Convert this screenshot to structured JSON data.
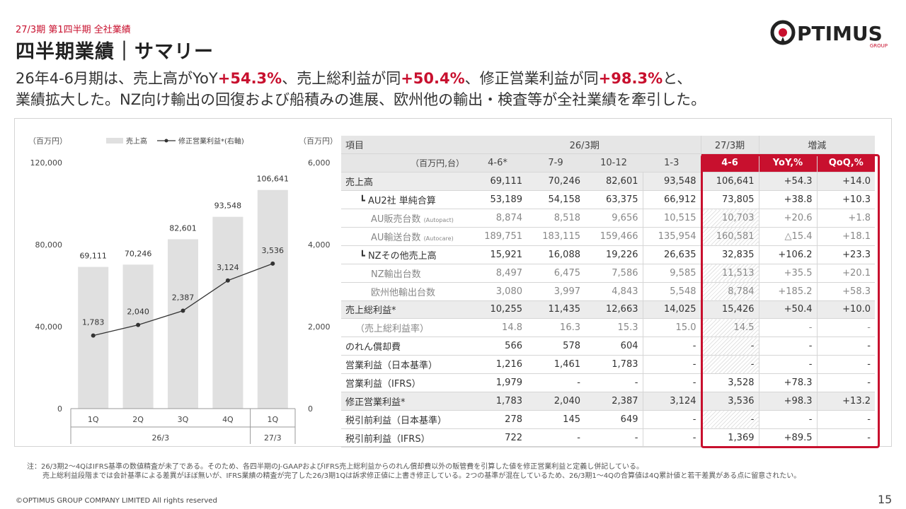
{
  "header": {
    "pretitle": "27/3期 第1四半期 全社業績",
    "title": "四半期業績｜サマリー",
    "lead": {
      "l1a": "26年4-6月期は、売上高がYoY",
      "l1b": "+54.3%",
      "l1c": "、売上総利益が同",
      "l1d": "+50.4%",
      "l1e": "、修正営業利益が同",
      "l1f": "+98.3%",
      "l1g": "と、",
      "l2": "業績拡大した。NZ向け輸出の回復および船積みの進展、欧州他の輸出・検査等が全社業績を牽引した。"
    }
  },
  "logo": {
    "word": "PTIMUS",
    "sub": "GROUP",
    "brand_color": "#c8102e"
  },
  "chart_data": {
    "type": "bar",
    "left_unit": "（百万円）",
    "right_unit": "（百万円）",
    "legend": {
      "bar": "売上高",
      "line": "修正営業利益*(右軸)"
    },
    "categories": [
      "1Q",
      "2Q",
      "3Q",
      "4Q",
      "1Q"
    ],
    "groups": [
      {
        "label": "26/3",
        "span": 4
      },
      {
        "label": "27/3",
        "span": 1
      }
    ],
    "left_ticks": [
      "120,000",
      "80,000",
      "40,000",
      "0"
    ],
    "right_ticks": [
      "6,000",
      "4,000",
      "2,000",
      "0"
    ],
    "ylim_left": [
      0,
      120000
    ],
    "ylim_right": [
      0,
      6000
    ],
    "series": [
      {
        "name": "売上高",
        "type": "bar",
        "axis": "left",
        "values": [
          69111,
          70246,
          82601,
          93548,
          106641
        ],
        "labels": [
          "69,111",
          "70,246",
          "82,601",
          "93,548",
          "106,641"
        ],
        "color": "#e0e0e0"
      },
      {
        "name": "修正営業利益*",
        "type": "line",
        "axis": "right",
        "values": [
          1783,
          2040,
          2387,
          3124,
          3536
        ],
        "labels": [
          "1,783",
          "2,040",
          "2,387",
          "3,124",
          "3,536"
        ],
        "color": "#333333"
      }
    ]
  },
  "table": {
    "head1": {
      "item": "項目",
      "p26": "26/3期",
      "p27": "27/3期",
      "diff": "増減"
    },
    "head2": {
      "unit": "（百万円,台）",
      "c1": "4-6*",
      "c2": "7-9",
      "c3": "10-12",
      "c4": "1-3",
      "c5": "4-6",
      "c6": "YoY,%",
      "c7": "QoQ,%"
    },
    "rows": [
      {
        "label": "売上高",
        "small": "",
        "v": [
          "69,111",
          "70,246",
          "82,601",
          "93,548",
          "106,641",
          "+54.3",
          "+14.0"
        ]
      },
      {
        "label": "┗ AU2社 単純合算",
        "small": "",
        "v": [
          "53,189",
          "54,158",
          "63,375",
          "66,912",
          "73,805",
          "+38.8",
          "+10.3"
        ]
      },
      {
        "label": "AU販売台数",
        "small": "(Autopact)",
        "v": [
          "8,874",
          "8,518",
          "9,656",
          "10,515",
          "10,703",
          "+20.6",
          "+1.8"
        ]
      },
      {
        "label": "AU輸送台数",
        "small": "(Autocare)",
        "v": [
          "189,751",
          "183,115",
          "159,466",
          "135,954",
          "160,581",
          "△15.4",
          "+18.1"
        ]
      },
      {
        "label": "┗ NZその他売上高",
        "small": "",
        "v": [
          "15,921",
          "16,088",
          "19,226",
          "26,635",
          "32,835",
          "+106.2",
          "+23.3"
        ]
      },
      {
        "label": "NZ輸出台数",
        "small": "",
        "v": [
          "8,497",
          "6,475",
          "7,586",
          "9,585",
          "11,513",
          "+35.5",
          "+20.1"
        ]
      },
      {
        "label": "欧州他輸出台数",
        "small": "",
        "v": [
          "3,080",
          "3,997",
          "4,843",
          "5,548",
          "8,784",
          "+185.2",
          "+58.3"
        ]
      },
      {
        "label": "売上総利益*",
        "small": "",
        "v": [
          "10,255",
          "11,435",
          "12,663",
          "14,025",
          "15,426",
          "+50.4",
          "+10.0"
        ]
      },
      {
        "label": "（売上総利益率）",
        "small": "",
        "v": [
          "14.8",
          "16.3",
          "15.3",
          "15.0",
          "14.5",
          "-",
          "-"
        ]
      },
      {
        "label": "のれん償却費",
        "small": "",
        "v": [
          "566",
          "578",
          "604",
          "-",
          "-",
          "-",
          "-"
        ]
      },
      {
        "label": "営業利益（日本基準）",
        "small": "",
        "v": [
          "1,216",
          "1,461",
          "1,783",
          "-",
          "-",
          "-",
          "-"
        ]
      },
      {
        "label": "営業利益（IFRS）",
        "small": "",
        "v": [
          "1,979",
          "-",
          "-",
          "-",
          "3,528",
          "+78.3",
          "-"
        ]
      },
      {
        "label": "修正営業利益*",
        "small": "",
        "v": [
          "1,783",
          "2,040",
          "2,387",
          "3,124",
          "3,536",
          "+98.3",
          "+13.2"
        ]
      },
      {
        "label": "税引前利益（日本基準）",
        "small": "",
        "v": [
          "278",
          "145",
          "649",
          "-",
          "-",
          "-",
          "-"
        ]
      },
      {
        "label": "税引前利益（IFRS）",
        "small": "",
        "v": [
          "722",
          "-",
          "-",
          "-",
          "1,369",
          "+89.5",
          "-"
        ]
      }
    ]
  },
  "note": {
    "l1": "注：26/3期2～4QはIFRS基準の数値精査が未了である。そのため、各四半期のJ-GAAPおよびIFRS売上総利益からのれん償却費以外の販管費を引算した値を修正営業利益と定義し併記している。",
    "l2": "売上総利益段階までは会計基準による差異がほぼ無いが、IFRS業績の精査が完了した26/3期1Qは訴求修正値に上書き修正している。2つの基準が混在しているため、26/3期1～4Qの合算値は4Q累計値と若干差異がある点に留意されたい。"
  },
  "footer": {
    "copyright": "©OPTIMUS GROUP COMPANY LIMITED All rights reserved",
    "page": "15"
  }
}
